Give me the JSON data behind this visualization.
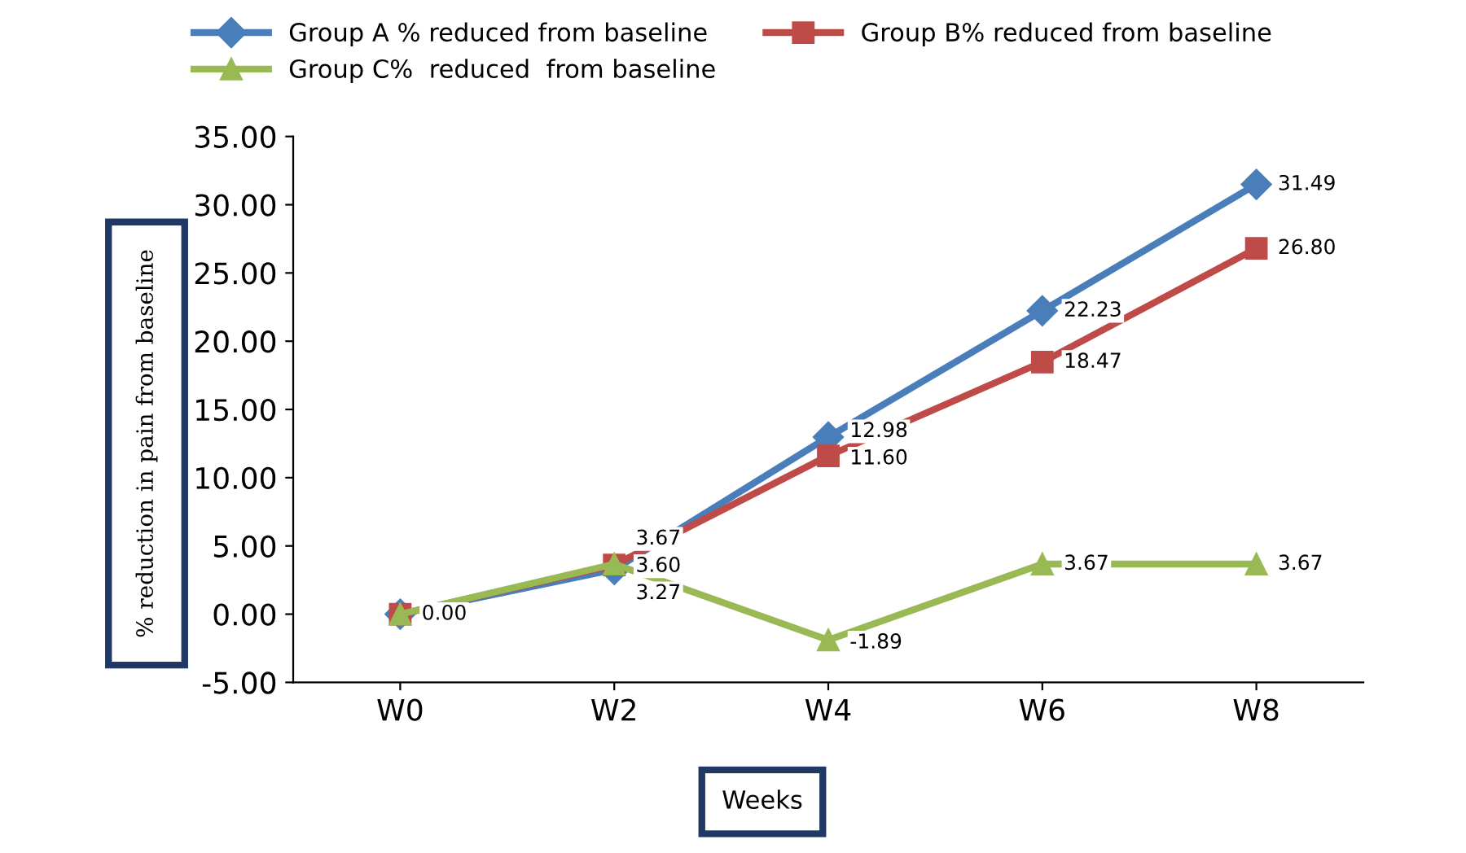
{
  "chart_data": {
    "type": "line",
    "xlabel": "Weeks",
    "ylabel": "% reduction in pain from baseline",
    "categories": [
      "W0",
      "W2",
      "W4",
      "W6",
      "W8"
    ],
    "series": [
      {
        "name": "Group A % reduced from baseline",
        "color": "#4a7ebb",
        "marker": "diamond",
        "values": [
          0.0,
          3.27,
          12.98,
          22.23,
          31.49
        ],
        "value_labels": [
          null,
          "3.27",
          "12.98",
          "22.23",
          "31.49"
        ]
      },
      {
        "name": "Group B% reduced from baseline",
        "color": "#be4b48",
        "marker": "square",
        "values": [
          0.0,
          3.6,
          11.6,
          18.47,
          26.8
        ],
        "value_labels": [
          "0.00",
          "3.60",
          "11.60",
          "18.47",
          "26.80"
        ]
      },
      {
        "name": "Group C%  reduced  from baseline",
        "color": "#98b954",
        "marker": "triangle",
        "values": [
          0.0,
          3.67,
          -1.89,
          3.67,
          3.67
        ],
        "value_labels": [
          null,
          "3.67",
          "-1.89",
          "3.67",
          "3.67"
        ]
      }
    ],
    "ylim": [
      -5,
      35
    ],
    "yticks": [
      {
        "value": -5,
        "label": "-5.00"
      },
      {
        "value": 0,
        "label": "0.00"
      },
      {
        "value": 5,
        "label": "5.00"
      },
      {
        "value": 10,
        "label": "10.00"
      },
      {
        "value": 15,
        "label": "15.00"
      },
      {
        "value": 20,
        "label": "20.00"
      },
      {
        "value": 25,
        "label": "25.00"
      },
      {
        "value": 30,
        "label": "30.00"
      },
      {
        "value": 35,
        "label": "35.00"
      }
    ],
    "legend": "top",
    "grid": false
  }
}
